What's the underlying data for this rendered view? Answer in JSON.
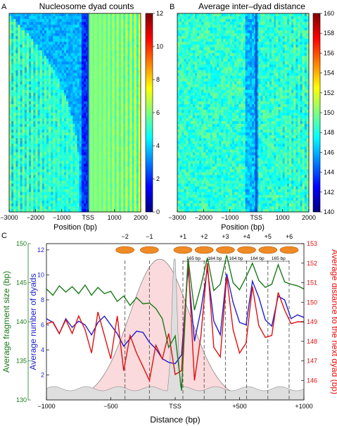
{
  "panels": {
    "A": {
      "letter": "A",
      "title": "Nucleosome dyad counts"
    },
    "B": {
      "letter": "B",
      "title": "Average inter–dyad distance"
    },
    "C": {
      "letter": "C"
    }
  },
  "colors": {
    "green": "#1a7a1a",
    "blue": "#1f1fcc",
    "red": "#e01010",
    "pink_fill": "#fadadc",
    "gray_fill": "#dedede",
    "nucleosome": "#f08a24"
  },
  "chart_data": [
    {
      "type": "heatmap",
      "panel": "A",
      "title": "Nucleosome dyad counts",
      "xlabel": "Position (bp)",
      "xlim": [
        -3000,
        2000
      ],
      "x_ticks": [
        "−3000",
        "−2000",
        "−1000",
        "TSS",
        "1000",
        "2000"
      ],
      "x_tick_values": [
        -3000,
        -2000,
        -1000,
        0,
        1000,
        2000
      ],
      "colorbar": {
        "range": [
          0,
          12
        ],
        "ticks": [
          "0",
          "2",
          "4",
          "6",
          "8",
          "10",
          "12"
        ],
        "colormap": "jet"
      }
    },
    {
      "type": "heatmap",
      "panel": "B",
      "title": "Average inter–dyad distance",
      "xlabel": "Position (bp)",
      "xlim": [
        -3000,
        2000
      ],
      "x_ticks": [
        "−3000",
        "−2000",
        "−1000",
        "TSS",
        "1000",
        "2000"
      ],
      "x_tick_values": [
        -3000,
        -2000,
        -1000,
        0,
        1000,
        2000
      ],
      "colorbar": {
        "range": [
          140,
          160
        ],
        "ticks": [
          "140",
          "142",
          "144",
          "146",
          "148",
          "150",
          "152",
          "154",
          "156",
          "158",
          "160"
        ],
        "colormap": "jet"
      }
    },
    {
      "type": "line",
      "panel": "C",
      "xlabel": "Distance (bp)",
      "xlim": [
        -1000,
        1000
      ],
      "x_ticks": [
        "−1000",
        "−500",
        "TSS",
        "+500",
        "+1000"
      ],
      "x_tick_values": [
        -1000,
        -500,
        0,
        500,
        1000
      ],
      "y_left_outer": {
        "label": "Average fragment size (bp)",
        "range": [
          130,
          150
        ],
        "ticks": [
          "130",
          "135",
          "140",
          "145",
          "150"
        ]
      },
      "y_left_inner": {
        "label": "Average number of dyads",
        "range": [
          0,
          12.5
        ],
        "ticks": [
          "2",
          "4",
          "6",
          "8",
          "10",
          "12"
        ]
      },
      "y_right": {
        "label": "Average distance to the next dyad (bp)",
        "range": [
          145,
          153
        ],
        "ticks": [
          "146",
          "147",
          "148",
          "149",
          "150",
          "151",
          "152",
          "153"
        ]
      },
      "nucleosomes": [
        {
          "label": "−2",
          "x": -390
        },
        {
          "label": "−1",
          "x": -200
        },
        {
          "label": "+1",
          "x": 60
        },
        {
          "label": "+2",
          "x": 225
        },
        {
          "label": "+3",
          "x": 390
        },
        {
          "label": "+4",
          "x": 555
        },
        {
          "label": "+5",
          "x": 720
        },
        {
          "label": "+6",
          "x": 885
        }
      ],
      "spacings": [
        "165 bp",
        "164 bp",
        "164 bp",
        "164 bp",
        "165 bp"
      ],
      "series": [
        {
          "axis": "y_left_inner",
          "color": "#1f1fcc",
          "x": [
            -1000,
            -950,
            -900,
            -850,
            -800,
            -750,
            -700,
            -650,
            -600,
            -550,
            -500,
            -450,
            -400,
            -350,
            -300,
            -250,
            -200,
            -150,
            -100,
            -50,
            0,
            50,
            100,
            150,
            200,
            250,
            300,
            350,
            400,
            450,
            500,
            550,
            600,
            650,
            700,
            750,
            800,
            850,
            900,
            950,
            1000
          ],
          "values": [
            6.5,
            6.2,
            5.3,
            6.5,
            5.8,
            6.3,
            6.0,
            5.2,
            6.2,
            6.7,
            6.0,
            5.3,
            4.3,
            4.9,
            5.5,
            5.4,
            4.6,
            4.1,
            3.3,
            3.0,
            2.9,
            3.6,
            10.5,
            4.7,
            7.2,
            10.5,
            6.3,
            5.2,
            10.1,
            7.8,
            6.2,
            6.0,
            9.5,
            8.2,
            6.4,
            5.9,
            8.3,
            8.0,
            6.5,
            6.8,
            6.6
          ]
        },
        {
          "axis": "y_right",
          "color": "#e01010",
          "x": [
            -1000,
            -950,
            -900,
            -850,
            -800,
            -750,
            -700,
            -650,
            -600,
            -550,
            -500,
            -450,
            -400,
            -350,
            -300,
            -250,
            -200,
            -150,
            -100,
            -50,
            0,
            50,
            100,
            150,
            200,
            250,
            300,
            350,
            400,
            450,
            500,
            550,
            600,
            650,
            700,
            750,
            800,
            850,
            900,
            950,
            1000
          ],
          "values": [
            148.9,
            149.0,
            148.4,
            149.1,
            148.4,
            149.3,
            148.6,
            147.4,
            149.5,
            148.3,
            147.1,
            149.3,
            146.5,
            148.3,
            147.4,
            146.7,
            146.0,
            147.8,
            147.1,
            148.4,
            146.3,
            146.5,
            152.2,
            146.0,
            148.3,
            152.0,
            147.7,
            147.2,
            151.3,
            148.6,
            147.4,
            147.9,
            150.8,
            148.8,
            148.2,
            148.3,
            150.5,
            149.6,
            148.9,
            149.0,
            149.0
          ]
        },
        {
          "axis": "y_left_outer",
          "color": "#1a7a1a",
          "x": [
            -1000,
            -950,
            -900,
            -850,
            -800,
            -750,
            -700,
            -650,
            -600,
            -550,
            -500,
            -450,
            -400,
            -350,
            -300,
            -250,
            -200,
            -150,
            -100,
            -50,
            0,
            50,
            100,
            150,
            200,
            250,
            300,
            350,
            400,
            450,
            500,
            550,
            600,
            650,
            700,
            750,
            800,
            850,
            900,
            950,
            1000
          ],
          "values": [
            144.2,
            143.4,
            144.6,
            143.8,
            144.5,
            143.6,
            144.7,
            143.4,
            144.4,
            143.6,
            143.9,
            142.6,
            143.3,
            142.1,
            143.1,
            142.3,
            142.4,
            141.7,
            140.4,
            136.7,
            138.2,
            131.2,
            148.1,
            141.5,
            144.6,
            148.2,
            144.0,
            144.8,
            148.5,
            145.0,
            144.1,
            145.7,
            147.5,
            145.3,
            144.4,
            144.8,
            147.3,
            145.1,
            144.8,
            144.6,
            144.2
          ]
        }
      ]
    }
  ]
}
